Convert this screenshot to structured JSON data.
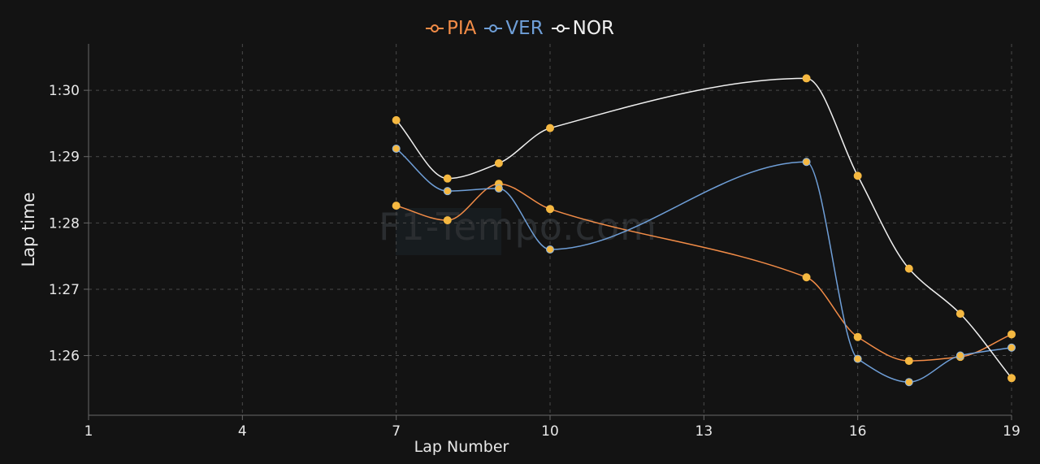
{
  "chart_data": {
    "type": "line",
    "title": "",
    "xlabel": "Lap Number",
    "ylabel": "Lap time",
    "x_ticks": [
      1,
      4,
      7,
      10,
      13,
      16,
      19
    ],
    "x_tick_labels": [
      "1",
      "4",
      "7",
      "10",
      "13",
      "16",
      "19"
    ],
    "xlim": [
      1,
      19
    ],
    "y_ticks": [
      86,
      87,
      88,
      89,
      90
    ],
    "y_tick_labels": [
      "1:26",
      "1:27",
      "1:28",
      "1:29",
      "1:30"
    ],
    "ylim": [
      85.1,
      90.7
    ],
    "grid": true,
    "legend_position": "top-center",
    "series": [
      {
        "name": "PIA",
        "color": "#f28c47",
        "x": [
          7,
          8,
          9,
          10,
          15,
          16,
          17,
          18,
          19
        ],
        "y": [
          88.26,
          88.04,
          88.59,
          88.21,
          87.18,
          86.28,
          85.92,
          85.98,
          86.32
        ]
      },
      {
        "name": "VER",
        "color": "#6f9fd8",
        "x": [
          7,
          8,
          9,
          10,
          15,
          16,
          17,
          18,
          19
        ],
        "y": [
          89.12,
          88.48,
          88.52,
          87.6,
          88.92,
          85.95,
          85.6,
          86.0,
          86.12
        ]
      },
      {
        "name": "NOR",
        "color": "#f0f0f0",
        "x": [
          7,
          8,
          9,
          10,
          15,
          16,
          17,
          18,
          19
        ],
        "y": [
          89.55,
          88.67,
          88.9,
          89.43,
          90.18,
          88.71,
          87.31,
          86.63,
          85.66
        ]
      }
    ],
    "marker_color": "#f5b841"
  },
  "watermark": "F1-Tempo.com"
}
